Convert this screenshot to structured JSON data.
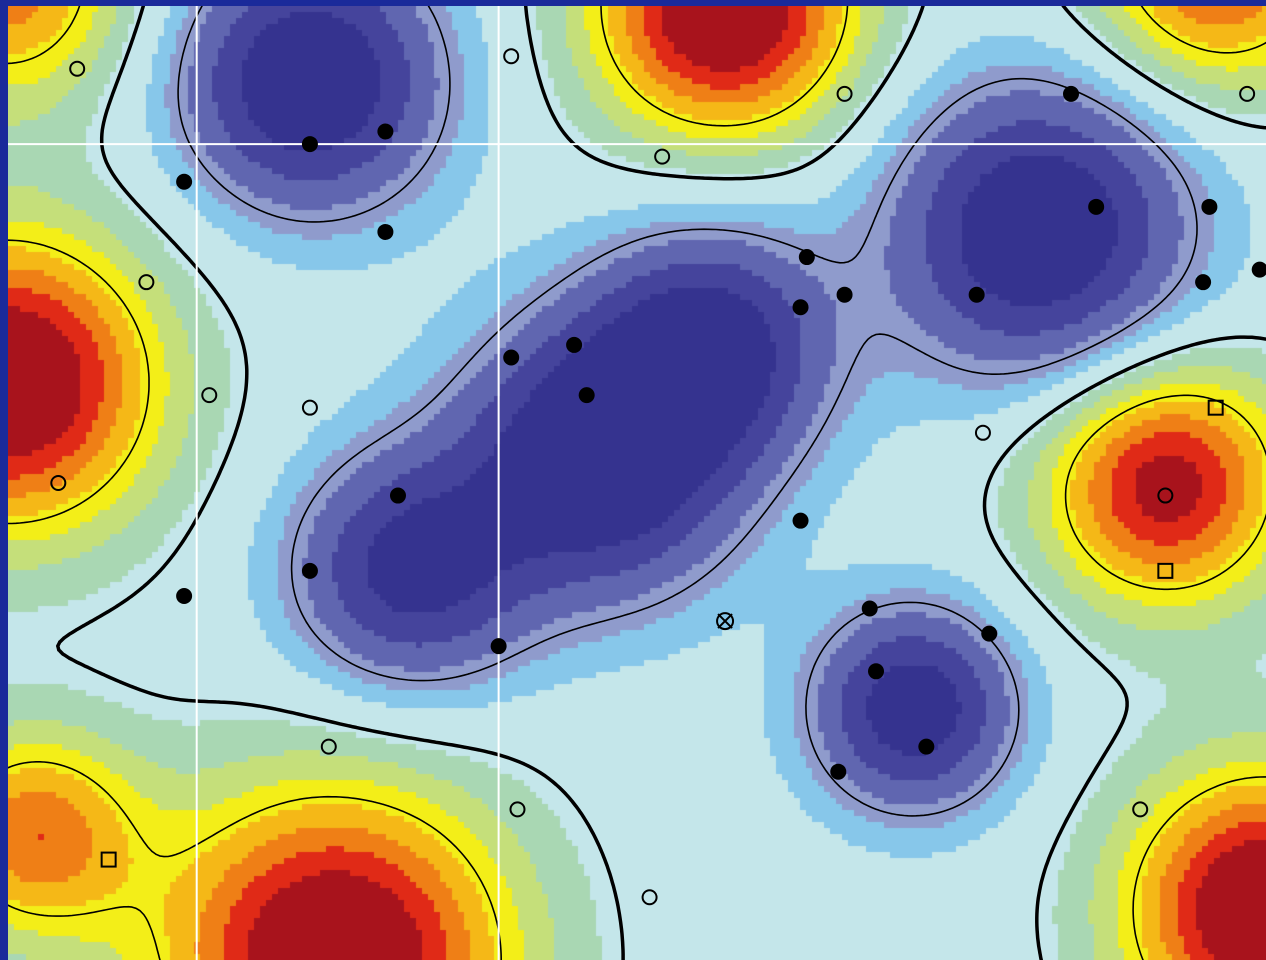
{
  "chart_data": {
    "type": "heatmap",
    "title": "",
    "xlabel": "",
    "ylabel": "",
    "xlim": [
      0,
      100
    ],
    "ylim": [
      0,
      76
    ],
    "grid": false,
    "legend": "none",
    "colors": {
      "border": "#1a2a9a",
      "guide_lines": "#ffffff",
      "contour_line": "#000000",
      "low": "#35338f",
      "mid": "#c4e6ea",
      "high": "#e02a17",
      "peak": "#a8131c"
    },
    "guide_lines": {
      "x": [
        15,
        39
      ],
      "y": [
        65
      ]
    },
    "peaks": [
      {
        "x": 24,
        "y": 70,
        "amp": -1.1,
        "s": 7
      },
      {
        "x": 47,
        "y": 40,
        "amp": -1.15,
        "s": 7.5
      },
      {
        "x": 32,
        "y": 31,
        "amp": -0.9,
        "s": 6.5
      },
      {
        "x": 56,
        "y": 49,
        "amp": -0.9,
        "s": 6.5
      },
      {
        "x": 82,
        "y": 58,
        "amp": -1.1,
        "s": 8
      },
      {
        "x": 72,
        "y": 20,
        "amp": -1.0,
        "s": 5.5
      },
      {
        "x": 57,
        "y": 76,
        "amp": 1.1,
        "s": 7.5
      },
      {
        "x": 0,
        "y": 46,
        "amp": 1.1,
        "s": 8.5
      },
      {
        "x": 92,
        "y": 38,
        "amp": 0.95,
        "s": 7
      },
      {
        "x": 26,
        "y": 0,
        "amp": 1.1,
        "s": 10
      },
      {
        "x": 100,
        "y": 4,
        "amp": 1.1,
        "s": 8
      },
      {
        "x": 96,
        "y": 79,
        "amp": 0.8,
        "s": 7
      },
      {
        "x": 0,
        "y": 78,
        "amp": 0.7,
        "s": 7
      },
      {
        "x": 2,
        "y": 10,
        "amp": 0.7,
        "s": 6
      }
    ],
    "series": [
      {
        "marker": "filled-circle",
        "points": [
          [
            24,
            65
          ],
          [
            30,
            66
          ],
          [
            14,
            62
          ],
          [
            30,
            58
          ],
          [
            40,
            48
          ],
          [
            45,
            49
          ],
          [
            46,
            45
          ],
          [
            31,
            37
          ],
          [
            14,
            29
          ],
          [
            24,
            31
          ],
          [
            39,
            25
          ],
          [
            63,
            52
          ],
          [
            63.5,
            56
          ],
          [
            66.5,
            53
          ],
          [
            77,
            53
          ],
          [
            84.5,
            69
          ],
          [
            86.5,
            60
          ],
          [
            95.5,
            60
          ],
          [
            99.5,
            55
          ],
          [
            95,
            54
          ],
          [
            63,
            35
          ],
          [
            68.5,
            28
          ],
          [
            69,
            23
          ],
          [
            78,
            26
          ],
          [
            73,
            17
          ],
          [
            66,
            15
          ]
        ]
      },
      {
        "marker": "open-circle",
        "points": [
          [
            5.5,
            71
          ],
          [
            40,
            72
          ],
          [
            66.5,
            69
          ],
          [
            52,
            64
          ],
          [
            98.5,
            69
          ],
          [
            11,
            54
          ],
          [
            16,
            45
          ],
          [
            24,
            44
          ],
          [
            4,
            38
          ],
          [
            77.5,
            42
          ],
          [
            25.5,
            17
          ],
          [
            40.5,
            12
          ],
          [
            51,
            5
          ],
          [
            90,
            12
          ],
          [
            92,
            37
          ]
        ]
      },
      {
        "marker": "open-square",
        "points": [
          [
            96,
            44
          ],
          [
            92,
            31
          ],
          [
            8,
            8
          ]
        ]
      },
      {
        "marker": "crossed-circle",
        "points": [
          [
            57,
            27
          ]
        ]
      }
    ]
  }
}
